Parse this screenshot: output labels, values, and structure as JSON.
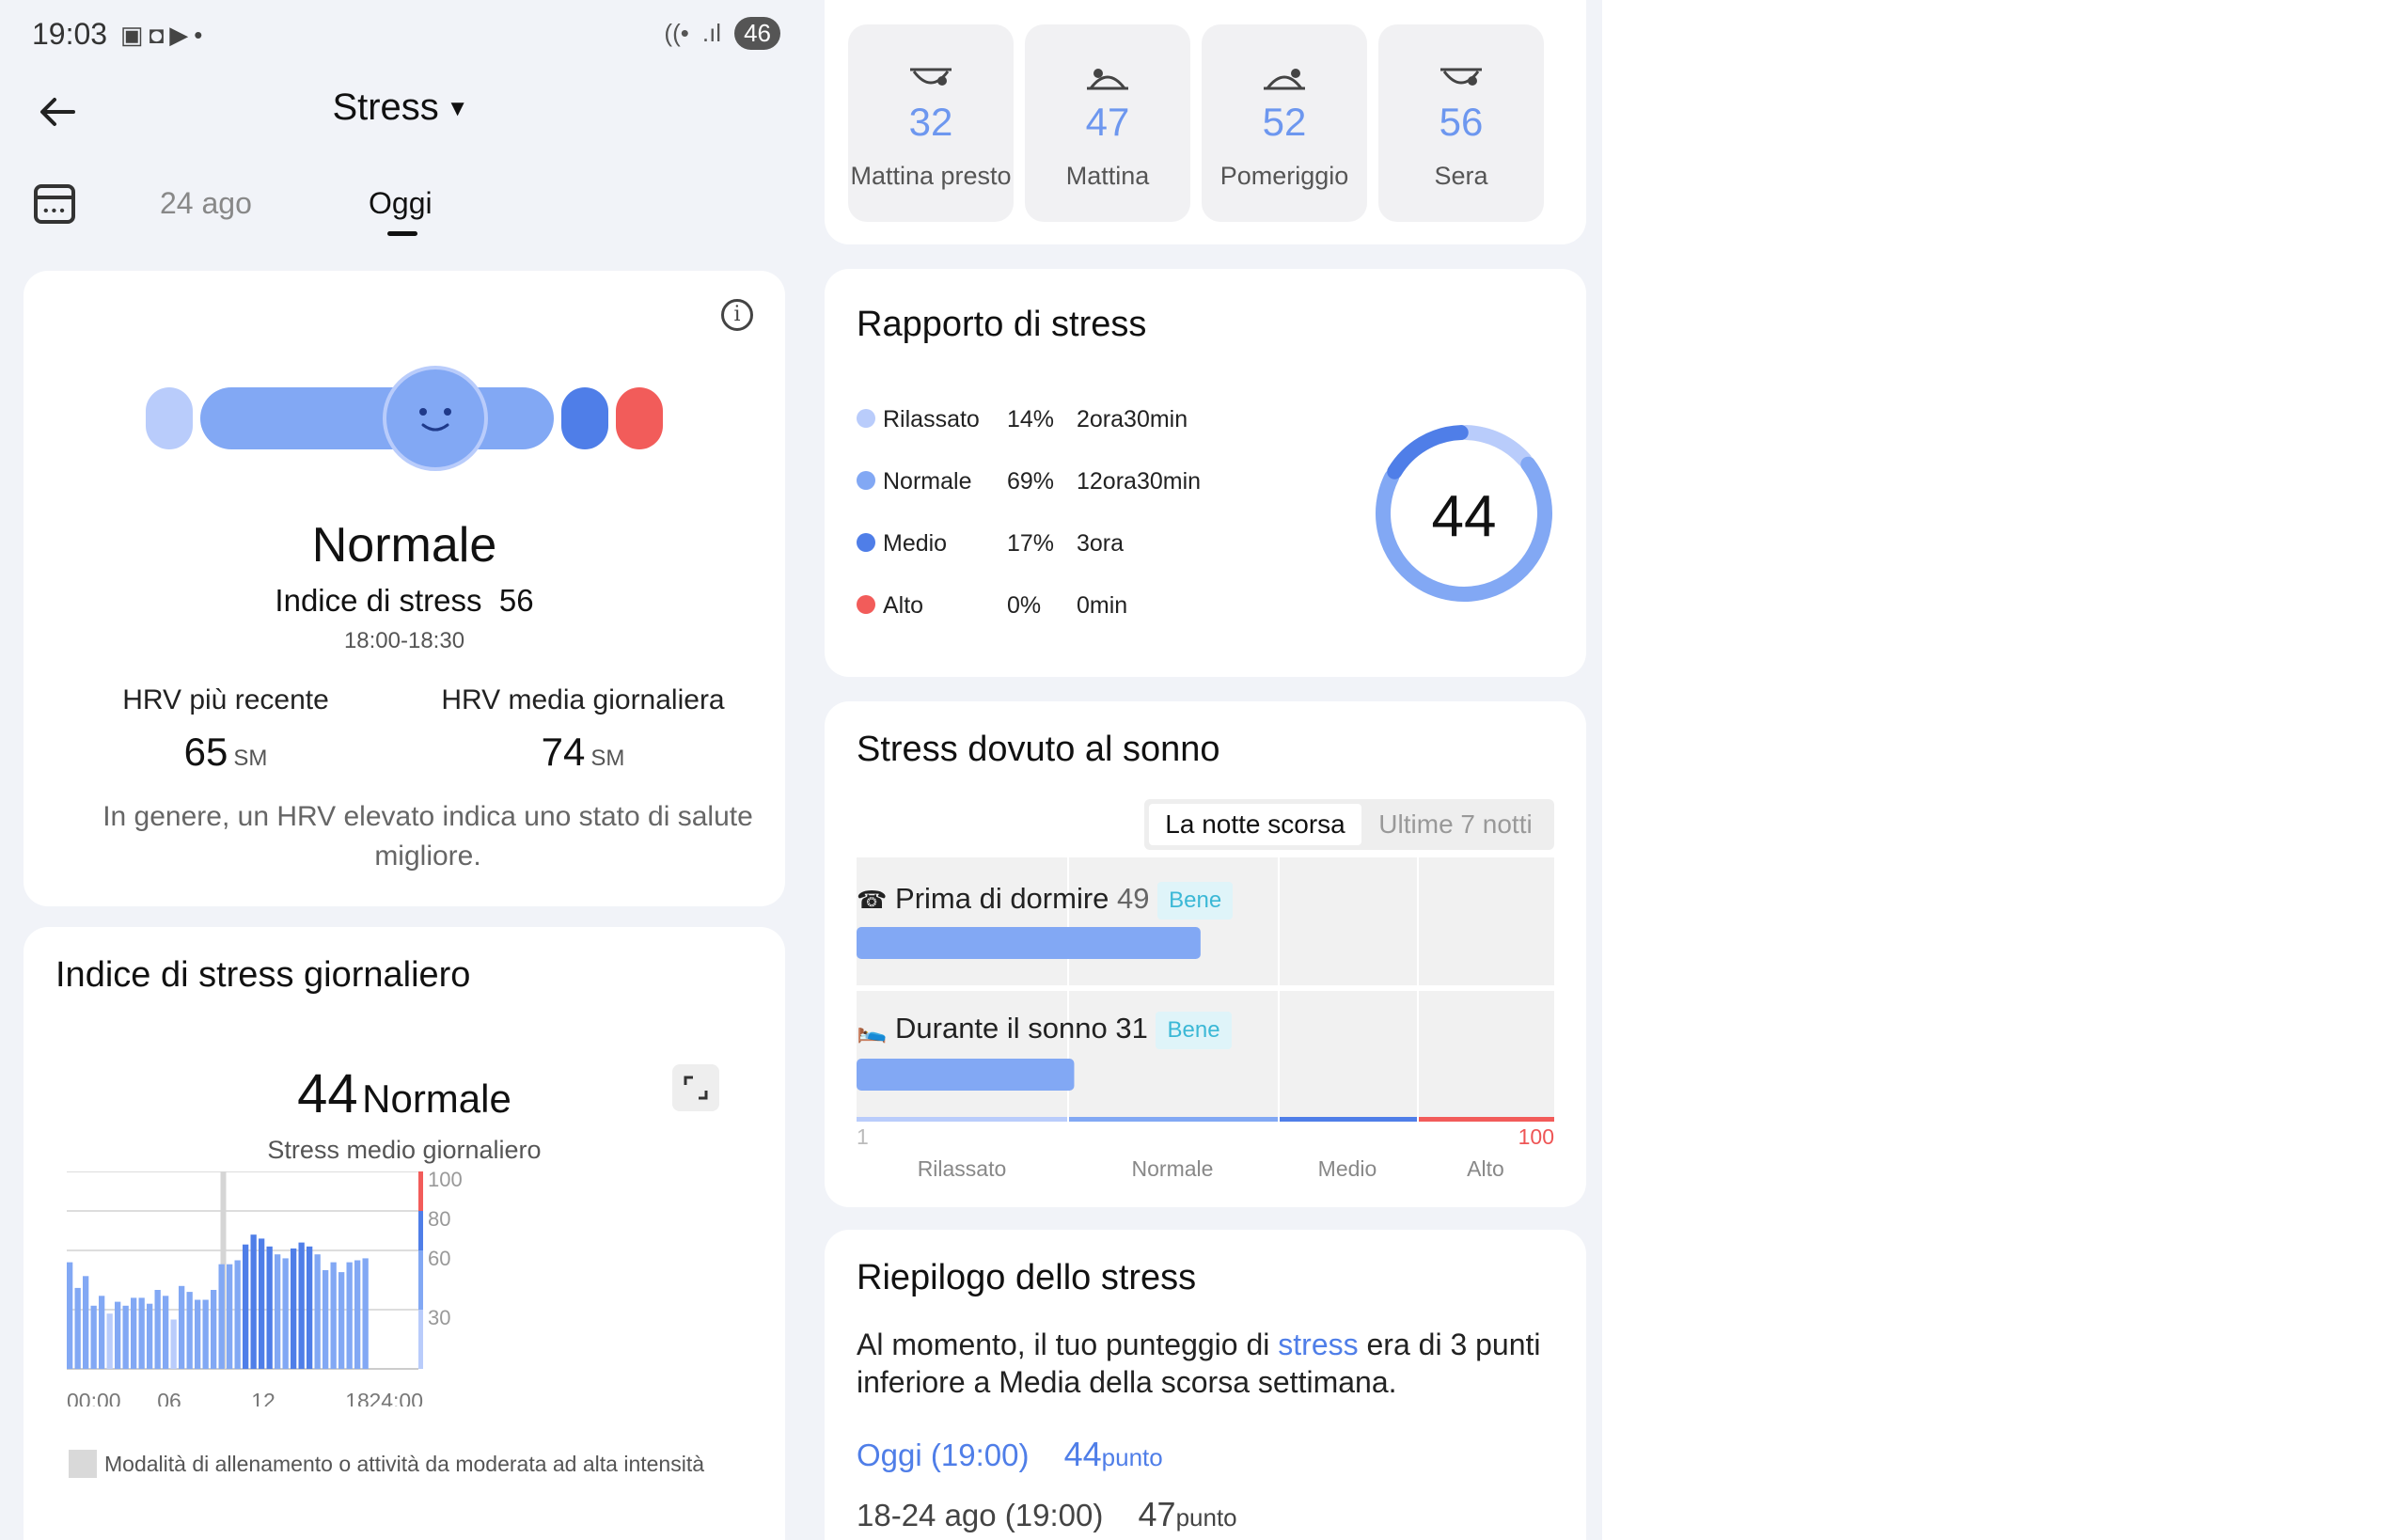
{
  "status": {
    "time": "19:03",
    "icons_left": [
      "screenshot-icon",
      "cast-icon",
      "youtube-icon"
    ],
    "battery": "46"
  },
  "header": {
    "title": "Stress"
  },
  "date_tabs": [
    {
      "label": "24 ago"
    },
    {
      "label": "Oggi"
    }
  ],
  "summary_card": {
    "level_label": "Normale",
    "index_label": "Indice di stress",
    "index_value": "56",
    "time_range": "18:00-18:30",
    "gauge_position": 0.56,
    "hrv_recent_label": "HRV più recente",
    "hrv_recent_value": "65",
    "hrv_unit": "SM",
    "hrv_daily_label": "HRV media giornaliera",
    "hrv_daily_value": "74",
    "note": "In genere, un HRV elevato indica uno stato di salute migliore."
  },
  "daily_card": {
    "title": "Indice di stress giornaliero",
    "avg_value": "44",
    "avg_label": "Normale",
    "avg_caption": "Stress medio giornaliero",
    "footnote": "Modalità di allenamento o attività da moderata ad alta intensità"
  },
  "chart_data": {
    "type": "bar",
    "x_ticks": [
      "00:00",
      "06",
      "12",
      "18",
      "24:00"
    ],
    "y_ticks": [
      "100",
      "80",
      "60",
      "30"
    ],
    "ylim": [
      0,
      100
    ],
    "values": [
      54,
      41,
      47,
      32,
      37,
      28,
      34,
      32,
      36,
      36,
      33,
      40,
      37,
      25,
      42,
      39,
      35,
      35,
      40,
      53,
      53,
      55,
      63,
      68,
      66,
      62,
      58,
      56,
      61,
      64,
      62,
      58,
      50,
      54,
      49,
      54,
      55,
      56
    ],
    "highlight_interval": 19,
    "bands": [
      {
        "name": "Rilassato",
        "from": 0,
        "to": 30,
        "color": "#b9ccfb"
      },
      {
        "name": "Normale",
        "from": 30,
        "to": 60,
        "color": "#82a8f4"
      },
      {
        "name": "Medio",
        "from": 60,
        "to": 80,
        "color": "#4f7ee8"
      },
      {
        "name": "Alto",
        "from": 80,
        "to": 100,
        "color": "#f25c5a"
      }
    ]
  },
  "time_slots": [
    {
      "value": "32",
      "label": "Mattina presto",
      "icon": "moon-horizon-icon"
    },
    {
      "value": "47",
      "label": "Mattina",
      "icon": "sunrise-icon"
    },
    {
      "value": "52",
      "label": "Pomeriggio",
      "icon": "sun-horizon-icon"
    },
    {
      "value": "56",
      "label": "Sera",
      "icon": "moon-horizon-icon"
    }
  ],
  "report": {
    "title": "Rapporto di stress",
    "rows": [
      {
        "name": "Rilassato",
        "pct": "14%",
        "time": "2ora30min",
        "color": "#b9ccfb",
        "fraction": 0.14
      },
      {
        "name": "Normale",
        "pct": "69%",
        "time": "12ora30min",
        "color": "#82a8f4",
        "fraction": 0.69
      },
      {
        "name": "Medio",
        "pct": "17%",
        "time": "3ora",
        "color": "#4f7ee8",
        "fraction": 0.17
      },
      {
        "name": "Alto",
        "pct": "0%",
        "time": "0min",
        "color": "#f25c5a",
        "fraction": 0.0
      }
    ],
    "ring_value": "44"
  },
  "sleep": {
    "title": "Stress dovuto al sonno",
    "seg_active": "La notte scorsa",
    "seg_inactive": "Ultime 7 notti",
    "before_label": "Prima di dormire",
    "before_value": "49",
    "before_badge": "Bene",
    "during_label": "Durante il sonno",
    "during_value": "31",
    "during_badge": "Bene",
    "scale_min": "1",
    "scale_max": "100",
    "bands": [
      "Rilassato",
      "Normale",
      "Medio",
      "Alto"
    ]
  },
  "summary": {
    "title": "Riepilogo dello stress",
    "text_pre": "Al momento, il tuo punteggio di ",
    "text_link": "stress",
    "text_post": " era di 3 punti inferiore a Media della scorsa settimana.",
    "today_label": "Oggi (19:00)",
    "today_value": "44",
    "unit": "punto",
    "week_label": "18-24 ago (19:00)",
    "week_value": "47"
  }
}
